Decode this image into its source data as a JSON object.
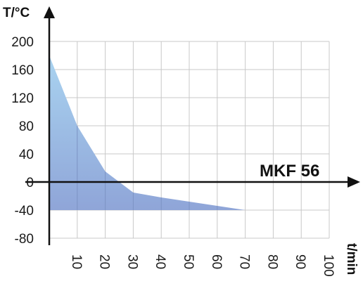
{
  "chart_data": {
    "type": "area",
    "x": [
      0,
      10,
      20,
      30,
      40,
      50,
      60,
      70
    ],
    "series": [
      {
        "name": "MKF 56",
        "values": [
          180,
          80,
          15,
          -15,
          -22,
          -28,
          -34,
          -40
        ],
        "baseline": -40
      }
    ],
    "xlabel": "t/min",
    "ylabel": "T/°C",
    "xlim": [
      0,
      100
    ],
    "ylim": [
      -80,
      200
    ],
    "x_ticks": [
      10,
      20,
      30,
      40,
      50,
      60,
      70,
      80,
      90,
      100
    ],
    "y_ticks": [
      200,
      160,
      120,
      80,
      40,
      0,
      -40,
      -80
    ],
    "grid": true,
    "fill_color_top": "#a9d3f0",
    "fill_color_bottom": "#8fa5d8",
    "grid_color": "#c8c8c8",
    "axis_color": "#111111"
  }
}
